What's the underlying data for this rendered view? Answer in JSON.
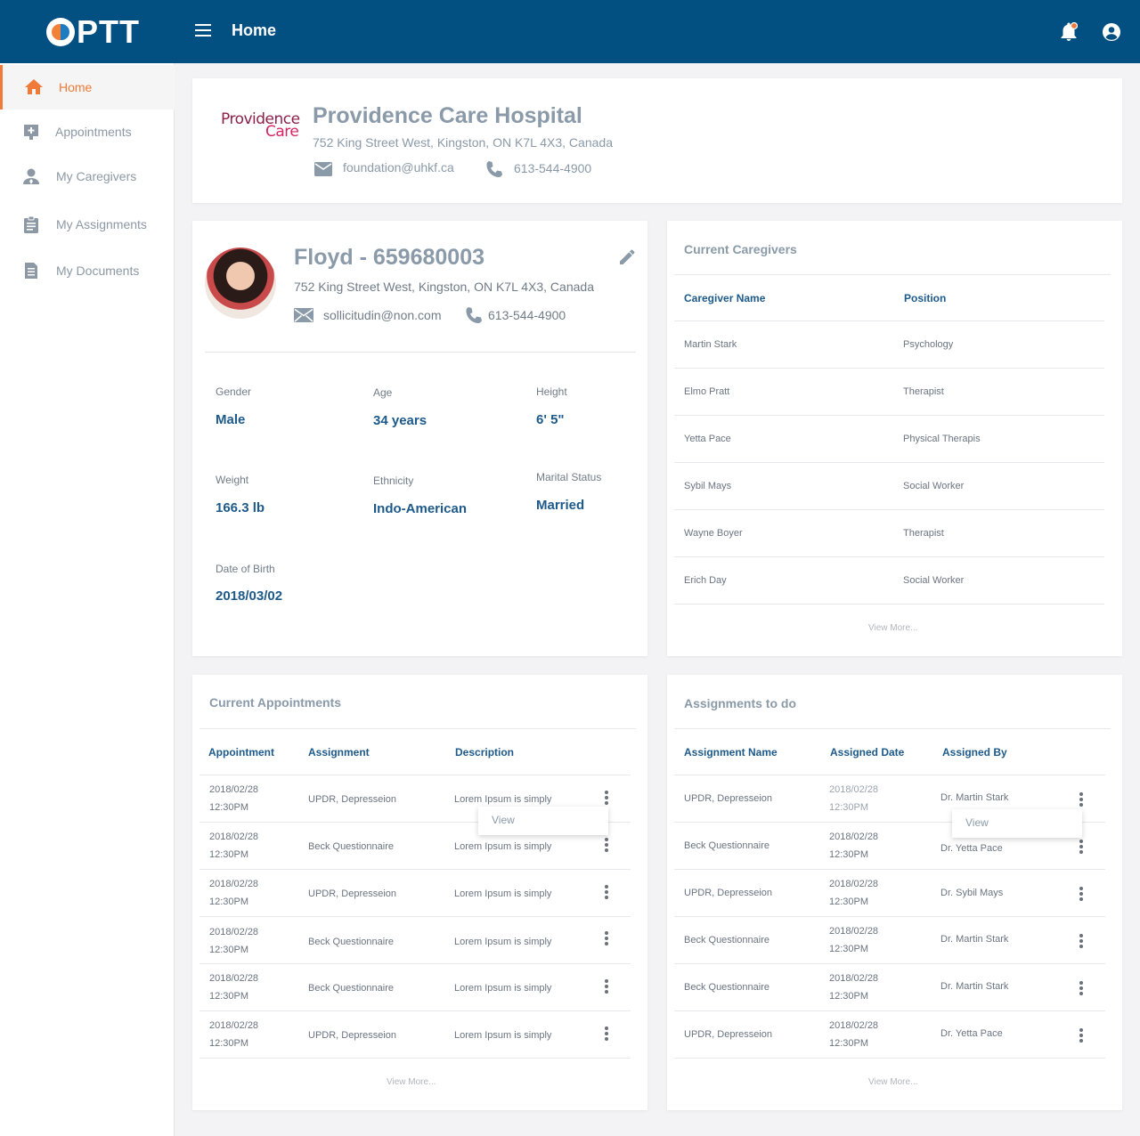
{
  "app": {
    "logo_text": "PTT",
    "page_title": "Home"
  },
  "sidebar": {
    "items": [
      {
        "label": "Home",
        "icon": "home-icon"
      },
      {
        "label": "Appointments",
        "icon": "appointment-icon"
      },
      {
        "label": "My Caregivers",
        "icon": "caregiver-icon"
      },
      {
        "label": "My Assignments",
        "icon": "clipboard-icon"
      },
      {
        "label": "My Documents",
        "icon": "document-icon"
      }
    ],
    "active": "Home"
  },
  "hospital": {
    "logo_line1": "Providence",
    "logo_line2": "Care",
    "name": "Providence Care Hospital",
    "address": "752 King Street West, Kingston, ON K7L 4X3, Canada",
    "email": "foundation@uhkf.ca",
    "phone": "613-544-4900"
  },
  "patient": {
    "name": "Floyd - 659680003",
    "address": "752 King Street West, Kingston, ON K7L 4X3, Canada",
    "email": "sollicitudin@non.com",
    "phone": "613-544-4900",
    "attributes": {
      "gender": {
        "label": "Gender",
        "value": "Male"
      },
      "age": {
        "label": "Age",
        "value": "34 years"
      },
      "height": {
        "label": "Height",
        "value": "6' 5\""
      },
      "weight": {
        "label": "Weight",
        "value": "166.3 lb"
      },
      "ethnicity": {
        "label": "Ethnicity",
        "value": "Indo-American"
      },
      "marital": {
        "label": "Marital Status",
        "value": "Married"
      },
      "dob": {
        "label": "Date of Birth",
        "value": "2018/03/02"
      }
    }
  },
  "caregivers": {
    "title": "Current Caregivers",
    "headers": [
      "Caregiver Name",
      "Position"
    ],
    "rows": [
      [
        "Martin Stark",
        "Psychology"
      ],
      [
        "Elmo Pratt",
        "Therapist"
      ],
      [
        "Yetta Pace",
        "Physical Therapis"
      ],
      [
        "Sybil Mays",
        "Social Worker"
      ],
      [
        "Wayne Boyer",
        "Therapist"
      ],
      [
        "Erich Day",
        "Social Worker"
      ]
    ],
    "view_more": "View More..."
  },
  "appointments": {
    "title": "Current Appointments",
    "headers": [
      "Appointment",
      "Assignment",
      "Description"
    ],
    "rows": [
      {
        "date": "2018/02/28",
        "time": "12:30PM",
        "assignment": "UPDR, Depresseion",
        "description": "Lorem Ipsum is simply"
      },
      {
        "date": "2018/02/28",
        "time": "12:30PM",
        "assignment": "Beck Questionnaire",
        "description": "Lorem Ipsum is simply"
      },
      {
        "date": "2018/02/28",
        "time": "12:30PM",
        "assignment": "UPDR, Depresseion",
        "description": "Lorem Ipsum is simply"
      },
      {
        "date": "2018/02/28",
        "time": "12:30PM",
        "assignment": "Beck Questionnaire",
        "description": "Lorem Ipsum is simply"
      },
      {
        "date": "2018/02/28",
        "time": "12:30PM",
        "assignment": "Beck Questionnaire",
        "description": "Lorem Ipsum is simply"
      },
      {
        "date": "2018/02/28",
        "time": "12:30PM",
        "assignment": "UPDR, Depresseion",
        "description": "Lorem Ipsum is simply"
      }
    ],
    "popup_label": "View",
    "view_more": "View More..."
  },
  "assignments": {
    "title": "Assignments to do",
    "headers": [
      "Assignment Name",
      "Assigned Date",
      "Assigned By"
    ],
    "rows": [
      {
        "name": "UPDR, Depresseion",
        "date": "2018/02/28",
        "time": "12:30PM",
        "by": "Dr. Martin Stark"
      },
      {
        "name": "Beck Questionnaire",
        "date": "2018/02/28",
        "time": "12:30PM",
        "by": "Dr. Yetta Pace"
      },
      {
        "name": "UPDR, Depresseion",
        "date": "2018/02/28",
        "time": "12:30PM",
        "by": "Dr. Sybil Mays"
      },
      {
        "name": "Beck Questionnaire",
        "date": "2018/02/28",
        "time": "12:30PM",
        "by": "Dr. Martin Stark"
      },
      {
        "name": "Beck Questionnaire",
        "date": "2018/02/28",
        "time": "12:30PM",
        "by": "Dr. Martin Stark"
      },
      {
        "name": "UPDR, Depresseion",
        "date": "2018/02/28",
        "time": "12:30PM",
        "by": "Dr. Yetta Pace"
      }
    ],
    "popup_label": "View",
    "view_more": "View More..."
  },
  "colors": {
    "topbar": "#024f81",
    "accent": "#f07a3a",
    "heading_blue": "#1d5a8a",
    "muted": "#8a9aa8"
  }
}
